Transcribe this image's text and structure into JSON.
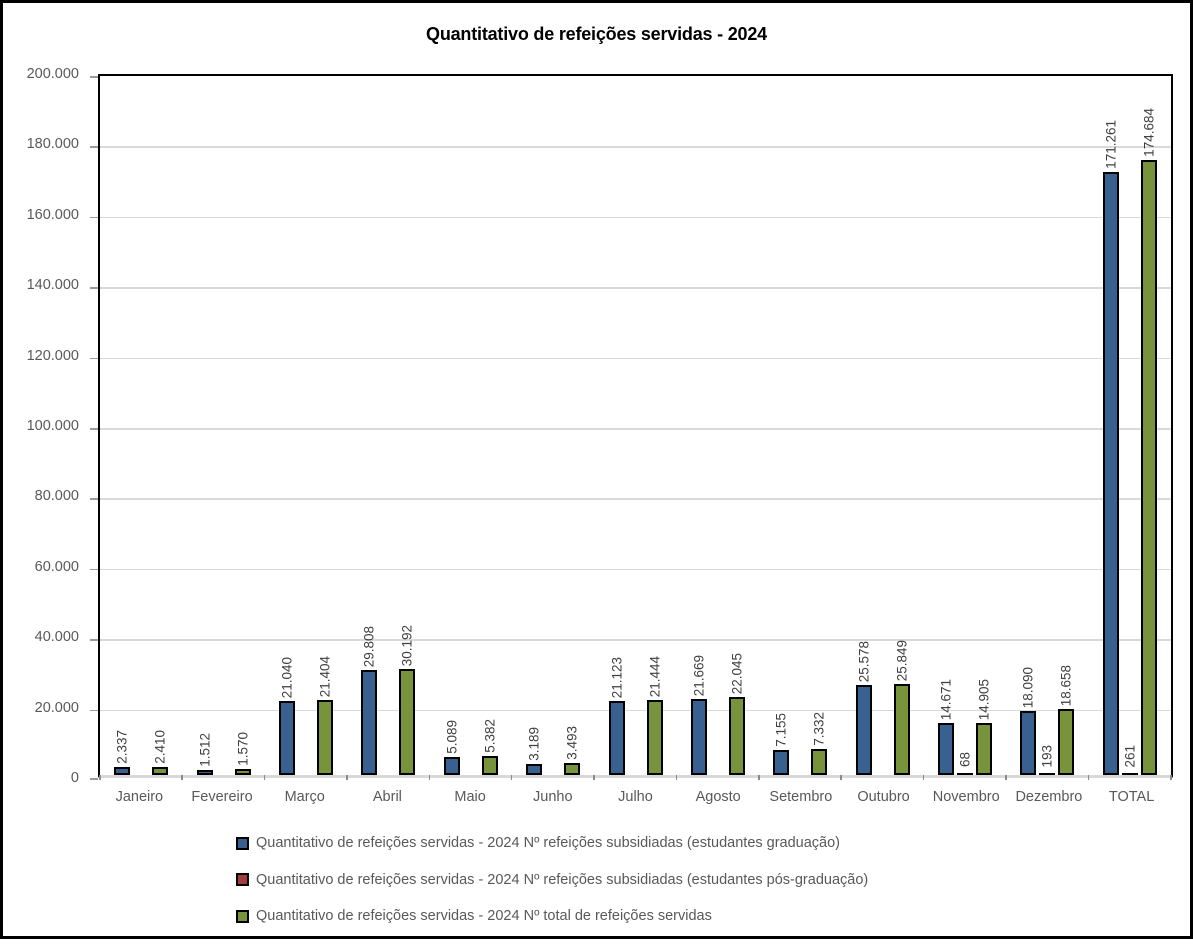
{
  "chart_data": {
    "type": "bar",
    "title": "Quantitativo de refeições servidas - 2024",
    "xlabel": "",
    "ylabel": "",
    "ylim": [
      0,
      200000
    ],
    "grid": true,
    "legend_position": "bottom",
    "categories": [
      "Janeiro",
      "Fevereiro",
      "Março",
      "Abril",
      "Maio",
      "Junho",
      "Julho",
      "Agosto",
      "Setembro",
      "Outubro",
      "Novembro",
      "Dezembro",
      "TOTAL"
    ],
    "y_ticks": [
      {
        "value": 0,
        "label": "0"
      },
      {
        "value": 20000,
        "label": "20.000"
      },
      {
        "value": 40000,
        "label": "40.000"
      },
      {
        "value": 60000,
        "label": "60.000"
      },
      {
        "value": 80000,
        "label": "80.000"
      },
      {
        "value": 100000,
        "label": "100.000"
      },
      {
        "value": 120000,
        "label": "120.000"
      },
      {
        "value": 140000,
        "label": "140.000"
      },
      {
        "value": 160000,
        "label": "160.000"
      },
      {
        "value": 180000,
        "label": "180.000"
      },
      {
        "value": 200000,
        "label": "200.000"
      }
    ],
    "series": [
      {
        "name": "Quantitativo de refeições servidas - 2024 Nº refeições subsidiadas (estudantes graduação)",
        "color": "#39618F",
        "values": [
          2337,
          1512,
          21040,
          29808,
          5089,
          3189,
          21123,
          21669,
          7155,
          25578,
          14671,
          18090,
          171261
        ],
        "labels": [
          "2.337",
          "1.512",
          "21.040",
          "29.808",
          "5.089",
          "3.189",
          "21.123",
          "21.669",
          "7.155",
          "25.578",
          "14.671",
          "18.090",
          "171.261"
        ]
      },
      {
        "name": "Quantitativo de refeições servidas - 2024 Nº refeições subsidiadas (estudantes pós-graduação)",
        "color": "#A33C3C",
        "values": [
          null,
          null,
          null,
          null,
          null,
          null,
          null,
          null,
          null,
          null,
          68,
          193,
          261
        ],
        "labels": [
          null,
          null,
          null,
          null,
          null,
          null,
          null,
          null,
          null,
          null,
          "68",
          "193",
          "261"
        ]
      },
      {
        "name": "Quantitativo de refeições servidas - 2024 Nº total de refeições servidas",
        "color": "#77933C",
        "values": [
          2410,
          1570,
          21404,
          30192,
          5382,
          3493,
          21444,
          22045,
          7332,
          25849,
          14905,
          18658,
          174684
        ],
        "labels": [
          "2.410",
          "1.570",
          "21.404",
          "30.192",
          "5.382",
          "3.493",
          "21.444",
          "22.045",
          "7.332",
          "25.849",
          "14.905",
          "18.658",
          "174.684"
        ]
      }
    ],
    "style": {
      "gridline_color": "#D9D9D9",
      "axis_label_color": "#595959",
      "data_label_color": "#404040",
      "bar_border_color": "#000000",
      "plot_border_color": "#000000"
    }
  }
}
